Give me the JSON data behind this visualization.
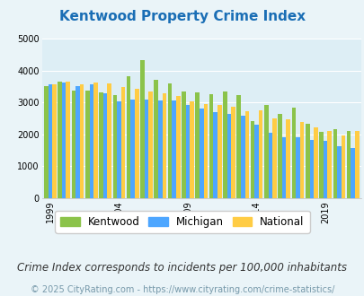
{
  "title": "Kentwood Property Crime Index",
  "years": [
    1999,
    2000,
    2001,
    2002,
    2003,
    2004,
    2005,
    2006,
    2007,
    2008,
    2009,
    2010,
    2011,
    2012,
    2013,
    2014,
    2015,
    2016,
    2017,
    2018,
    2019,
    2020,
    2021
  ],
  "kentwood": [
    3500,
    3650,
    3370,
    3370,
    3310,
    3230,
    3820,
    4310,
    3720,
    3600,
    3340,
    3300,
    3270,
    3340,
    3230,
    2420,
    2910,
    2640,
    2840,
    2320,
    2090,
    2160,
    2120
  ],
  "michigan": [
    3560,
    3630,
    3500,
    3570,
    3280,
    3040,
    3080,
    3080,
    3070,
    3060,
    2920,
    2820,
    2710,
    2630,
    2590,
    2310,
    2050,
    1920,
    1910,
    1830,
    1790,
    1630,
    1580
  ],
  "national": [
    3580,
    3640,
    3580,
    3620,
    3590,
    3470,
    3430,
    3340,
    3280,
    3210,
    3040,
    2950,
    2920,
    2870,
    2730,
    2740,
    2500,
    2460,
    2380,
    2220,
    2110,
    1980,
    2100
  ],
  "kentwood_color": "#8bc34a",
  "michigan_color": "#4da6ff",
  "national_color": "#ffcc44",
  "bg_color": "#eaf4f8",
  "plot_bg": "#ddeef5",
  "ylim": [
    0,
    5000
  ],
  "yticks": [
    0,
    1000,
    2000,
    3000,
    4000,
    5000
  ],
  "xlabel_ticks": [
    1999,
    2004,
    2009,
    2014,
    2019
  ],
  "title_color": "#1a6eb5",
  "subtitle": "Crime Index corresponds to incidents per 100,000 inhabitants",
  "footer": "© 2025 CityRating.com - https://www.cityrating.com/crime-statistics/",
  "legend_labels": [
    "Kentwood",
    "Michigan",
    "National"
  ],
  "title_fontsize": 11,
  "subtitle_fontsize": 8.5,
  "footer_fontsize": 7,
  "legend_fontsize": 8.5,
  "tick_fontsize": 7
}
